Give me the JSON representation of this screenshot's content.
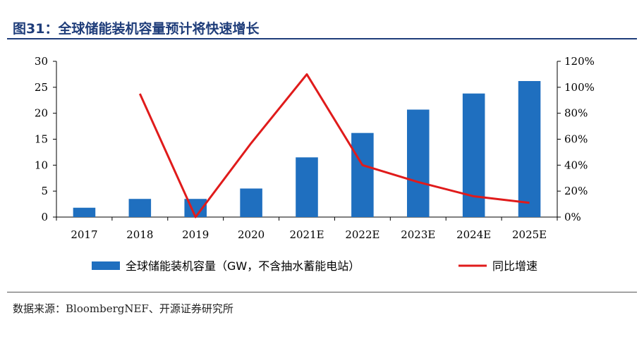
{
  "header": {
    "title": "图31：全球储能装机容量预计将快速增长"
  },
  "source": {
    "text": "数据来源：BloombergNEF、开源证券研究所"
  },
  "chart_data": {
    "type": "bar+line",
    "categories": [
      "2017",
      "2018",
      "2019",
      "2020",
      "2021E",
      "2022E",
      "2023E",
      "2024E",
      "2025E"
    ],
    "series": [
      {
        "name": "全球储能装机容量（GW，不含抽水蓄能电站）",
        "type": "bar",
        "axis": "left",
        "color": "#1f6fbf",
        "values": [
          1.8,
          3.5,
          3.5,
          5.5,
          11.5,
          16.2,
          20.7,
          23.8,
          26.2
        ]
      },
      {
        "name": "同比增速",
        "type": "line",
        "axis": "right",
        "color": "#e01b1b",
        "values": [
          null,
          95,
          0,
          57,
          110,
          40,
          27,
          16,
          11
        ]
      }
    ],
    "left_axis": {
      "min": 0,
      "max": 30,
      "ticks": [
        "0",
        "5",
        "10",
        "15",
        "20",
        "25",
        "30"
      ]
    },
    "right_axis": {
      "min": 0,
      "max": 120,
      "ticks": [
        "0%",
        "20%",
        "40%",
        "60%",
        "80%",
        "100%",
        "120%"
      ]
    },
    "legend_position": "bottom"
  }
}
